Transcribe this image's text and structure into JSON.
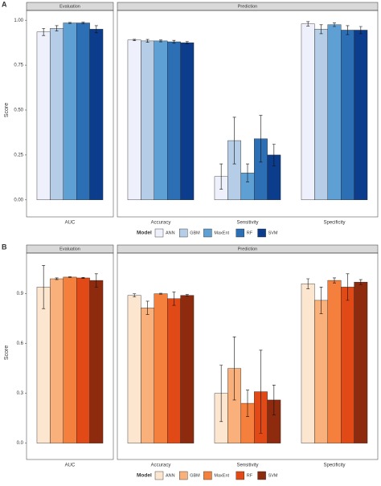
{
  "chart_data": [
    {
      "type": "bar",
      "panel": "A",
      "y_label": "Score",
      "legend_title": "Model",
      "ylim": [
        -0.05,
        1.05
      ],
      "yticks": [
        {
          "value": 0,
          "label": "0.00"
        },
        {
          "value": 0.25,
          "label": "0.25"
        },
        {
          "value": 0.5,
          "label": "0.50"
        },
        {
          "value": 0.75,
          "label": "0.75"
        },
        {
          "value": 1,
          "label": "1.00"
        }
      ],
      "facets": [
        {
          "title": "Evaluation",
          "categories": [
            "AUC"
          ]
        },
        {
          "title": "Prediction",
          "categories": [
            "Accuracy",
            "Sensitivity",
            "Specificity"
          ]
        }
      ],
      "series": [
        {
          "name": "ANN",
          "color": "#eef1fb",
          "values": [
            0.935,
            0.89,
            0.13,
            0.98
          ],
          "errors": [
            0.02,
            0.004,
            0.07,
            0.012
          ]
        },
        {
          "name": "GBM",
          "color": "#b5cde6",
          "values": [
            0.955,
            0.885,
            0.33,
            0.95
          ],
          "errors": [
            0.015,
            0.008,
            0.13,
            0.025
          ]
        },
        {
          "name": "MaxEnt",
          "color": "#5fa0d4",
          "values": [
            0.985,
            0.885,
            0.15,
            0.975
          ],
          "errors": [
            0.003,
            0.005,
            0.05,
            0.01
          ]
        },
        {
          "name": "RF",
          "color": "#2c6fb5",
          "values": [
            0.985,
            0.88,
            0.34,
            0.945
          ],
          "errors": [
            0.004,
            0.008,
            0.13,
            0.025
          ]
        },
        {
          "name": "SVM",
          "color": "#0c3c8c",
          "values": [
            0.95,
            0.875,
            0.25,
            0.945
          ],
          "errors": [
            0.02,
            0.006,
            0.06,
            0.02
          ]
        }
      ]
    },
    {
      "type": "bar",
      "panel": "B",
      "y_label": "Score",
      "legend_title": "Model",
      "ylim": [
        -0.05,
        1.14
      ],
      "yticks": [
        {
          "value": 0,
          "label": "0.0"
        },
        0.3,
        0.6,
        0.9
      ],
      "facets": [
        {
          "title": "Evaluation",
          "categories": [
            "AUC"
          ]
        },
        {
          "title": "Prediction",
          "categories": [
            "Accuracy",
            "Sensitivity",
            "Specificity"
          ]
        }
      ],
      "series": [
        {
          "name": "ANN",
          "color": "#fde6d0",
          "values": [
            0.94,
            0.89,
            0.3,
            0.96
          ],
          "errors": [
            0.13,
            0.01,
            0.17,
            0.03
          ]
        },
        {
          "name": "GBM",
          "color": "#f9b07a",
          "values": [
            0.99,
            0.815,
            0.45,
            0.86
          ],
          "errors": [
            0.005,
            0.04,
            0.19,
            0.08
          ]
        },
        {
          "name": "MaxEnt",
          "color": "#f57f3c",
          "values": [
            1.0,
            0.9,
            0.24,
            0.98
          ],
          "errors": [
            0.002,
            0.003,
            0.08,
            0.015
          ]
        },
        {
          "name": "RF",
          "color": "#e14a16",
          "values": [
            0.995,
            0.87,
            0.31,
            0.94
          ],
          "errors": [
            0.003,
            0.04,
            0.25,
            0.08
          ]
        },
        {
          "name": "SVM",
          "color": "#8e2a0e",
          "values": [
            0.98,
            0.89,
            0.26,
            0.97
          ],
          "errors": [
            0.04,
            0.005,
            0.09,
            0.015
          ]
        }
      ]
    }
  ]
}
